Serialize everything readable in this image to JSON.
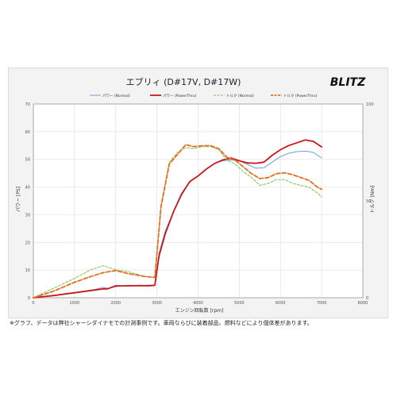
{
  "chart_data": {
    "type": "line",
    "title": "エブリィ (D#17V, D#17W)",
    "brand_logo": "BLITZ",
    "xlabel": "エンジン回転数 [rpm]",
    "ylabel_left": "パワー [PS]",
    "ylabel_right": "トルク [Nm]",
    "xlim": [
      0,
      8000
    ],
    "ylim_left": [
      0,
      70
    ],
    "ylim_right": [
      0,
      100
    ],
    "x_ticks": [
      "0",
      "1000",
      "2000",
      "3000",
      "4000",
      "5000",
      "6000",
      "7000",
      "8000"
    ],
    "y_left_ticks": [
      "0",
      "10",
      "20",
      "30",
      "40",
      "50",
      "60",
      "70"
    ],
    "y_right_ticks": [
      "0",
      "50",
      "100"
    ],
    "grid": true,
    "legend_position": "top",
    "series": [
      {
        "name": "パワー (Normal)",
        "axis": "left",
        "color": "#6a9fd4",
        "style": "solid",
        "points": [
          [
            0,
            0
          ],
          [
            500,
            0.8
          ],
          [
            1000,
            1.8
          ],
          [
            1500,
            3.0
          ],
          [
            1700,
            3.8
          ],
          [
            1800,
            3.4
          ],
          [
            2000,
            4.0
          ],
          [
            2300,
            4.5
          ],
          [
            2600,
            4.4
          ],
          [
            2800,
            4.6
          ],
          [
            2950,
            4.6
          ],
          [
            3050,
            16
          ],
          [
            3200,
            24
          ],
          [
            3400,
            31
          ],
          [
            3600,
            37
          ],
          [
            3800,
            42
          ],
          [
            4000,
            44
          ],
          [
            4200,
            46.5
          ],
          [
            4400,
            48.5
          ],
          [
            4600,
            49.5
          ],
          [
            4800,
            49.8
          ],
          [
            5000,
            49.5
          ],
          [
            5200,
            48.2
          ],
          [
            5400,
            46.8
          ],
          [
            5600,
            47
          ],
          [
            5800,
            49
          ],
          [
            6000,
            51
          ],
          [
            6200,
            52.2
          ],
          [
            6400,
            52.8
          ],
          [
            6600,
            53
          ],
          [
            6800,
            52.5
          ],
          [
            7000,
            50.5
          ]
        ]
      },
      {
        "name": "パワー (PowerThru)",
        "axis": "left",
        "color": "#c8171e",
        "style": "solid",
        "points": [
          [
            0,
            0
          ],
          [
            500,
            0.8
          ],
          [
            1000,
            1.8
          ],
          [
            1500,
            2.8
          ],
          [
            1700,
            3.2
          ],
          [
            1800,
            3.2
          ],
          [
            2000,
            4.3
          ],
          [
            2300,
            4.3
          ],
          [
            2600,
            4.4
          ],
          [
            2800,
            4.3
          ],
          [
            2950,
            4.5
          ],
          [
            3050,
            15
          ],
          [
            3200,
            23
          ],
          [
            3400,
            31
          ],
          [
            3600,
            37.5
          ],
          [
            3800,
            42
          ],
          [
            4000,
            44
          ],
          [
            4200,
            46.5
          ],
          [
            4400,
            48.5
          ],
          [
            4600,
            49.8
          ],
          [
            4800,
            50.5
          ],
          [
            5000,
            49.5
          ],
          [
            5200,
            48.7
          ],
          [
            5400,
            48.6
          ],
          [
            5600,
            49
          ],
          [
            5800,
            51.5
          ],
          [
            6000,
            53.5
          ],
          [
            6200,
            55
          ],
          [
            6400,
            56
          ],
          [
            6600,
            57
          ],
          [
            6800,
            56.5
          ],
          [
            7000,
            54.5
          ]
        ]
      },
      {
        "name": "トルク (Normal)",
        "axis": "right",
        "color": "#7bbf54",
        "style": "dashed",
        "points": [
          [
            0,
            0
          ],
          [
            500,
            5
          ],
          [
            1000,
            10
          ],
          [
            1400,
            14.5
          ],
          [
            1700,
            16.5
          ],
          [
            2000,
            14.5
          ],
          [
            2300,
            13.5
          ],
          [
            2700,
            11
          ],
          [
            2950,
            10.5
          ],
          [
            3100,
            48
          ],
          [
            3300,
            70
          ],
          [
            3500,
            75
          ],
          [
            3700,
            77.5
          ],
          [
            3900,
            77
          ],
          [
            4100,
            78
          ],
          [
            4300,
            78
          ],
          [
            4500,
            76.5
          ],
          [
            4700,
            71
          ],
          [
            4900,
            69
          ],
          [
            5100,
            65
          ],
          [
            5300,
            62
          ],
          [
            5500,
            58
          ],
          [
            5700,
            59
          ],
          [
            5900,
            61
          ],
          [
            6100,
            61
          ],
          [
            6300,
            59
          ],
          [
            6500,
            58
          ],
          [
            6700,
            57
          ],
          [
            6900,
            54
          ],
          [
            7000,
            52
          ]
        ]
      },
      {
        "name": "トルク (PowerThru)",
        "axis": "right",
        "color": "#e36f1e",
        "style": "dashed",
        "points": [
          [
            0,
            0
          ],
          [
            500,
            3.5
          ],
          [
            1000,
            8
          ],
          [
            1400,
            11
          ],
          [
            1700,
            13
          ],
          [
            2000,
            14
          ],
          [
            2300,
            12.5
          ],
          [
            2700,
            11
          ],
          [
            2950,
            10.5
          ],
          [
            3100,
            47
          ],
          [
            3300,
            69
          ],
          [
            3500,
            74
          ],
          [
            3700,
            79
          ],
          [
            3900,
            78
          ],
          [
            4100,
            78.5
          ],
          [
            4300,
            78.5
          ],
          [
            4500,
            77
          ],
          [
            4700,
            72.5
          ],
          [
            4900,
            71
          ],
          [
            5100,
            67.5
          ],
          [
            5300,
            64
          ],
          [
            5500,
            61.5
          ],
          [
            5700,
            62
          ],
          [
            5900,
            64
          ],
          [
            6100,
            64.5
          ],
          [
            6300,
            63.5
          ],
          [
            6500,
            62
          ],
          [
            6700,
            60.5
          ],
          [
            6900,
            57
          ],
          [
            7000,
            56
          ]
        ]
      }
    ]
  },
  "footnote": "※グラフ、データは弊社シャーシダイナモでの計測事例です。車両ならびに装着部品、燃料などにより個体差があります。"
}
